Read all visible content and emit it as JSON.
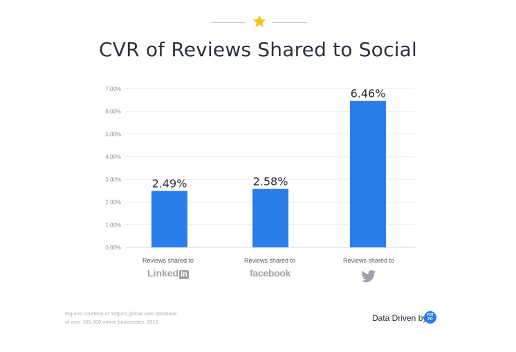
{
  "chart_data": {
    "type": "bar",
    "title": "CVR of Reviews Shared to Social",
    "categories": [
      "Reviews shared to",
      "Reviews shared to",
      "Reviews shared to"
    ],
    "category_logos": [
      "LinkedIn",
      "facebook",
      "twitter-icon"
    ],
    "values": [
      2.49,
      2.58,
      6.46
    ],
    "data_labels": [
      "2.49%",
      "2.58%",
      "6.46%"
    ],
    "yticks": [
      "0.00%",
      "1.00%",
      "2.00%",
      "3.00%",
      "4.00%",
      "5.00%",
      "6.00%",
      "7.00%"
    ],
    "ylim": [
      0,
      7
    ],
    "grid": true,
    "bar_color": "#2b7de9"
  },
  "logos": {
    "linkedin_text": "Linked",
    "linkedin_in": "in",
    "facebook_text": "facebook"
  },
  "footnote": {
    "line1": "Figures courtesy of Yotpo's global user database",
    "line2": "of over 100,000 online businesses, 2015."
  },
  "brand": {
    "label": "Data Driven by",
    "badge_top": "YOT",
    "badge_bottom": "PO"
  },
  "colors": {
    "accent": "#2b7de9",
    "star": "#f5c518",
    "grid": "#e6e8ec"
  }
}
